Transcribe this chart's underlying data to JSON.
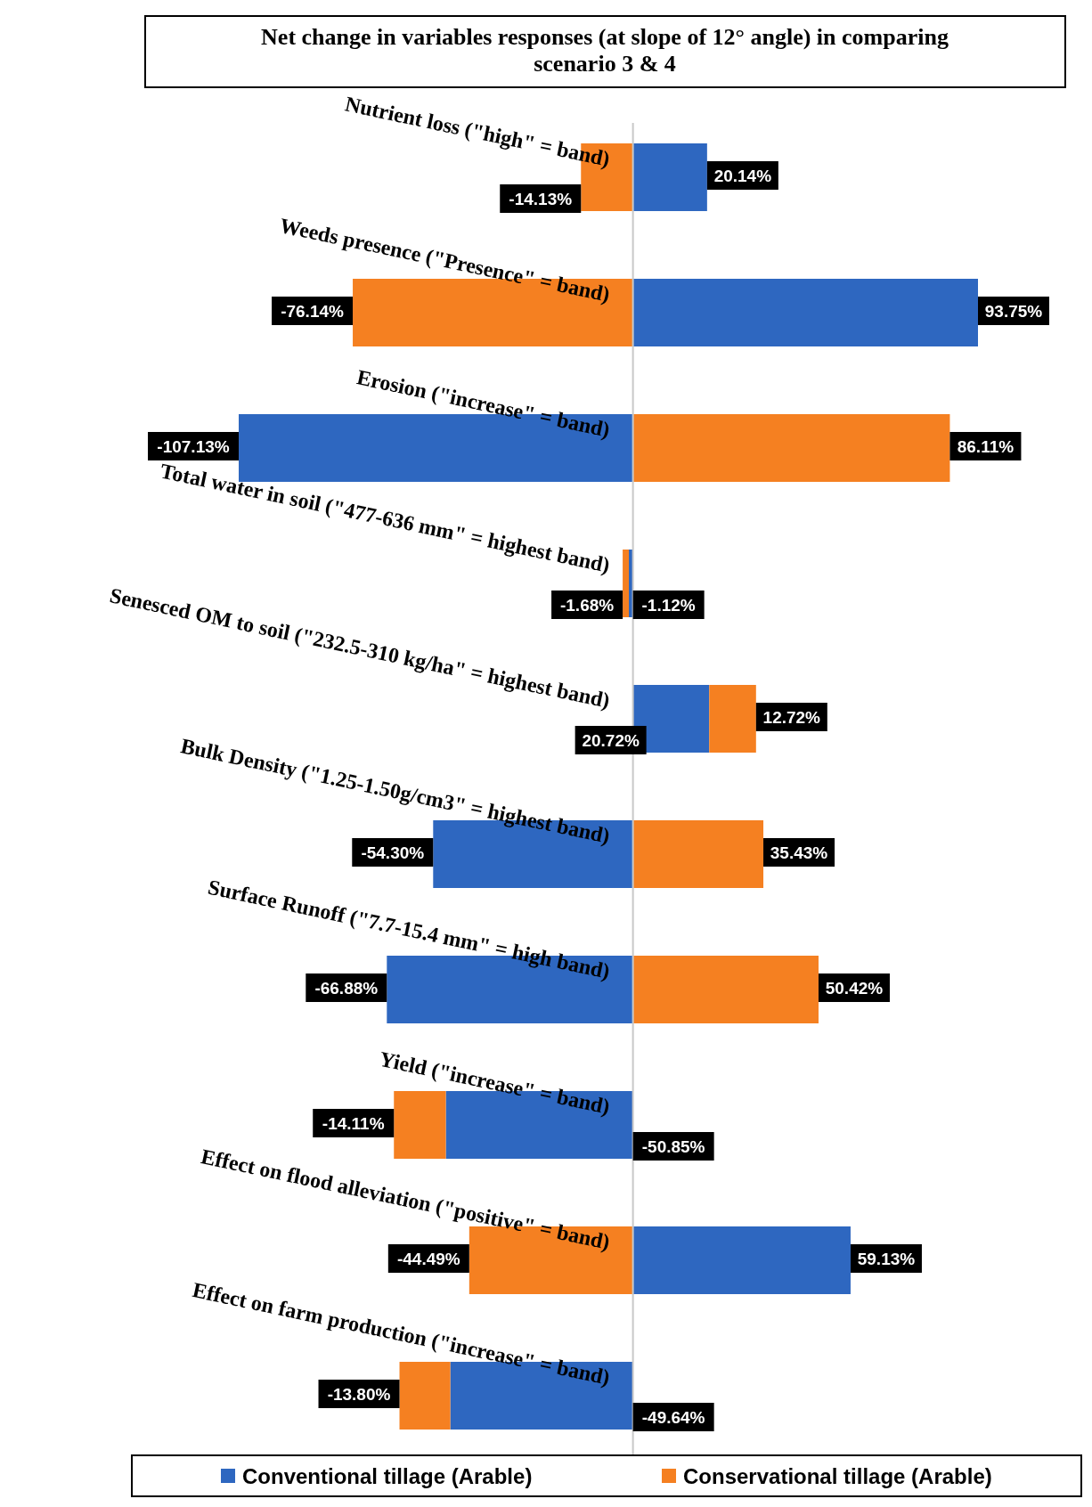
{
  "chart_data": {
    "type": "bar",
    "orientation": "horizontal",
    "stacked": true,
    "title": "Net change in variables responses (at slope of 12° angle) in comparing scenario 3 & 4",
    "categories": [
      "Nutrient loss (\"high\" = band)",
      "Weeds presence (\"Presence\" = band)",
      "Erosion (\"increase\" =  band)",
      "Total water in soil (\"477-636 mm\" = highest band)",
      "Senesced OM to soil (\"232.5-310 kg/ha\" = highest band)",
      "Bulk Density (\"1.25-1.50g/cm3\" = highest band)",
      "Surface Runoff (\"7.7-15.4 mm\" = high band)",
      "Yield (\"increase\" = band)",
      "Effect on flood alleviation (\"positive\" =  band)",
      "Effect on farm production (\"increase\" =  band)"
    ],
    "series": [
      {
        "name": "Conventional tillage (Arable)",
        "color": "#2e67c0",
        "values": [
          20.14,
          93.75,
          -107.13,
          -1.12,
          20.72,
          -54.3,
          -66.88,
          -50.85,
          59.13,
          -49.64
        ],
        "value_labels": [
          "20.14%",
          "93.75%",
          "-107.13%",
          "-1.12%",
          "20.72%",
          "-54.30%",
          "-66.88%",
          "-50.85%",
          "59.13%",
          "-49.64%"
        ]
      },
      {
        "name": "Conservational tillage (Arable)",
        "color": "#f58021",
        "values": [
          -14.13,
          -76.14,
          86.11,
          -1.68,
          12.72,
          35.43,
          50.42,
          -14.11,
          -44.49,
          -13.8
        ],
        "value_labels": [
          "-14.13%",
          "-76.14%",
          "86.11%",
          "-1.68%",
          "12.72%",
          "35.43%",
          "50.42%",
          "-14.11%",
          "-44.49%",
          "-13.80%"
        ]
      }
    ],
    "tick_labels": "y",
    "legend": "bottom"
  }
}
